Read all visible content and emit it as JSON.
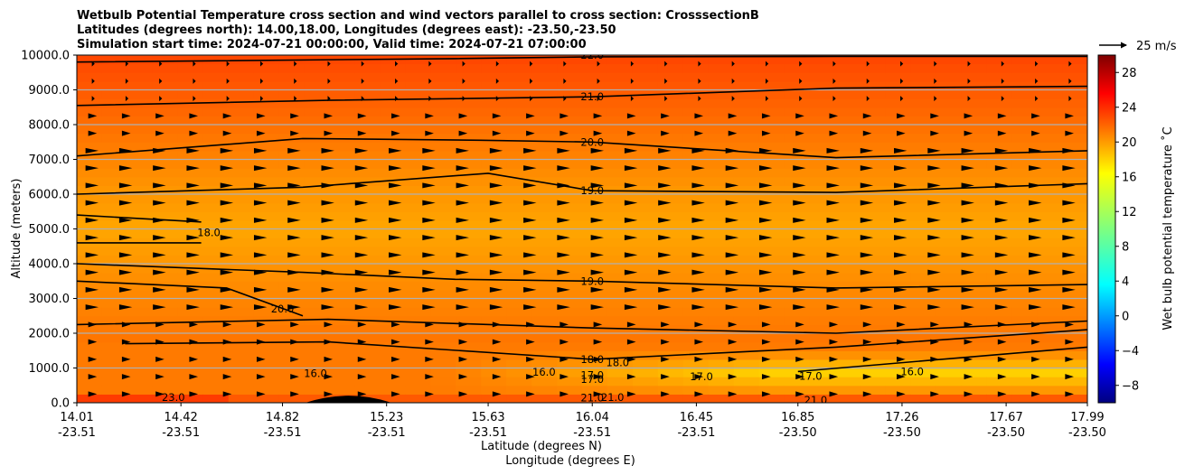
{
  "chart_data": {
    "type": "heatmap",
    "title_lines": [
      "Wetbulb Potential Temperature cross section and wind vectors parallel to cross section: CrosssectionB",
      "Latitudes (degrees north): 14.00,18.00, Longitudes (degrees east): -23.50,-23.50",
      "Simulation start time: 2024-07-21 00:00:00, Valid time: 2024-07-21 07:00:00"
    ],
    "xlabel": "Latitude (degrees N)",
    "xlabel2": "Longitude (degrees E)",
    "ylabel": "Altitude (meters)",
    "colorbar_label": "Wet bulb potential temperature $^\\circ$C",
    "colorbar_label_display": "Wet bulb potential temperature ˚C",
    "quiver_key": "25 m/s",
    "x_ticks": [
      {
        "lat": "14.01",
        "lon": "-23.51"
      },
      {
        "lat": "14.42",
        "lon": "-23.51"
      },
      {
        "lat": "14.82",
        "lon": "-23.51"
      },
      {
        "lat": "15.23",
        "lon": "-23.51"
      },
      {
        "lat": "15.63",
        "lon": "-23.51"
      },
      {
        "lat": "16.04",
        "lon": "-23.51"
      },
      {
        "lat": "16.45",
        "lon": "-23.51"
      },
      {
        "lat": "16.85",
        "lon": "-23.50"
      },
      {
        "lat": "17.26",
        "lon": "-23.50"
      },
      {
        "lat": "17.67",
        "lon": "-23.50"
      },
      {
        "lat": "17.99",
        "lon": "-23.50"
      }
    ],
    "xlim": [
      14.01,
      17.99
    ],
    "y_ticks": [
      "0.0",
      "1000.0",
      "2000.0",
      "3000.0",
      "4000.0",
      "5000.0",
      "6000.0",
      "7000.0",
      "8000.0",
      "9000.0",
      "10000.0"
    ],
    "ylim": [
      0,
      10000
    ],
    "colorbar_ticks": [
      "−8",
      "−4",
      "0",
      "4",
      "8",
      "12",
      "16",
      "20",
      "24",
      "28"
    ],
    "colorbar_range": [
      -10,
      30
    ],
    "colormap": "jet",
    "grid": "horizontal",
    "contour_lines": [
      {
        "level": 22.0,
        "x": [
          14.01,
          15.5,
          16.04,
          17.0,
          17.99
        ],
        "y": [
          9800,
          9900,
          9950,
          9960,
          9960
        ]
      },
      {
        "level": 21.0,
        "x": [
          14.01,
          15.0,
          16.04,
          17.0,
          17.99
        ],
        "y": [
          8550,
          8700,
          8800,
          9050,
          9100
        ]
      },
      {
        "level": 20.0,
        "x": [
          14.01,
          14.9,
          15.6,
          16.04,
          17.0,
          17.99
        ],
        "y": [
          7100,
          7600,
          7550,
          7500,
          7050,
          7250
        ]
      },
      {
        "level": 19.0,
        "x": [
          14.01,
          14.9,
          15.63,
          16.04,
          17.0,
          17.99
        ],
        "y": [
          6000,
          6200,
          6600,
          6100,
          6050,
          6300
        ]
      },
      {
        "level": 18.0,
        "x": [
          14.01,
          14.5
        ],
        "y": [
          5400,
          5200
        ]
      },
      {
        "level": 18.0,
        "x": [
          14.01,
          14.5
        ],
        "y": [
          4600,
          4600
        ]
      },
      {
        "level": 19.0,
        "x": [
          14.01,
          14.9,
          15.5,
          16.04,
          17.0,
          17.99
        ],
        "y": [
          4000,
          3750,
          3550,
          3500,
          3300,
          3400
        ]
      },
      {
        "level": 20.0,
        "x": [
          14.01,
          14.6,
          14.9
        ],
        "y": [
          3500,
          3300,
          2500
        ]
      },
      {
        "level": 20.0,
        "x": [
          14.01,
          15.0,
          16.04,
          17.0,
          17.99
        ],
        "y": [
          2250,
          2400,
          2150,
          2000,
          2350
        ]
      },
      {
        "level": 18.0,
        "x": [
          14.2,
          15.0,
          16.04,
          17.0,
          17.99
        ],
        "y": [
          1700,
          1750,
          1250,
          1600,
          2100
        ]
      },
      {
        "level": 17.0,
        "x": [
          16.85,
          17.5,
          17.99
        ],
        "y": [
          900,
          1300,
          1600
        ]
      }
    ],
    "contour_labels": [
      "22.0",
      "21.0",
      "20.0",
      "19.0",
      "18.0",
      "19.0",
      "20.0",
      "18.0",
      "18.0",
      "16.0",
      "16.0",
      "16.0",
      "17.0",
      "17.0",
      "17.0",
      "17.0",
      "21.0",
      "21.0",
      "21.0",
      "23.0"
    ],
    "wind": {
      "direction": "positive along section",
      "max_speed_ms": 25
    },
    "terrain": {
      "peak_lat": 15.08,
      "peak_altitude": 200
    }
  }
}
